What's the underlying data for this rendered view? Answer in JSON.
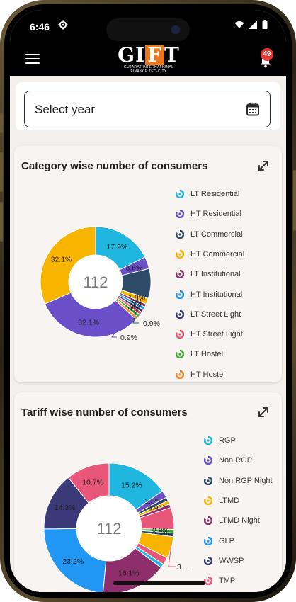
{
  "status_bar": {
    "time": "6:46"
  },
  "header": {
    "logo_main_left": "G",
    "logo_main_mid": "I",
    "logo_main_f": "F",
    "logo_main_right": "T",
    "logo_sub_1": "GUJARAT INTERNATIONAL",
    "logo_sub_2": "FINANCE TEC-CITY",
    "notification_count": "49"
  },
  "year_select": {
    "placeholder": "Select year"
  },
  "category_card": {
    "title": "Category wise number of consumers",
    "center_value": "112",
    "legend": [
      {
        "label": "LT Residential",
        "color": "#1fb6e0"
      },
      {
        "label": "HT Residential",
        "color": "#6a4fc9"
      },
      {
        "label": "LT Commercial",
        "color": "#2d4a66"
      },
      {
        "label": "HT Commercial",
        "color": "#f7b500"
      },
      {
        "label": "LT Institutional",
        "color": "#8e2f6b"
      },
      {
        "label": "HT Institutional",
        "color": "#2196f3"
      },
      {
        "label": "LT Street Light",
        "color": "#3b3a78"
      },
      {
        "label": "HT Street Light",
        "color": "#e8577a"
      },
      {
        "label": "LT Hostel",
        "color": "#3aa935"
      },
      {
        "label": "HT Hostel",
        "color": "#ef8a2a"
      }
    ]
  },
  "tariff_card": {
    "title": "Tariff wise number of consumers",
    "center_value": "112",
    "legend": [
      {
        "label": "RGP",
        "color": "#1fb6e0"
      },
      {
        "label": "Non RGP",
        "color": "#6a4fc9"
      },
      {
        "label": "Non RGP Night",
        "color": "#2d4a66"
      },
      {
        "label": "LTMD",
        "color": "#f7b500"
      },
      {
        "label": "LTMD Night",
        "color": "#8e2f6b"
      },
      {
        "label": "GLP",
        "color": "#2196f3"
      },
      {
        "label": "WWSP",
        "color": "#3b3a78"
      },
      {
        "label": "TMP",
        "color": "#e8577a"
      }
    ]
  },
  "chart_data": [
    {
      "type": "pie",
      "title": "Category wise number of consumers",
      "center_label": "112",
      "slices": [
        {
          "label": "LT Residential",
          "value": 17.9,
          "text": "17.9%",
          "color": "#1fb6e0"
        },
        {
          "label": "HT Residential",
          "value": 3.6,
          "text": "3.6%",
          "color": "#6a4fc9"
        },
        {
          "label": "LT Commercial",
          "value": 8.9,
          "text": "",
          "color": "#2d4a66"
        },
        {
          "label": "HT Commercial",
          "value": 1.8,
          "text": "1.8%",
          "color": "#f7b500"
        },
        {
          "label": "LT Institutional",
          "value": 0.9,
          "text": "",
          "color": "#8e2f6b"
        },
        {
          "label": "HT Institutional",
          "value": 0.9,
          "text": "0.9%",
          "color": "#2196f3"
        },
        {
          "label": "LT Street Light",
          "value": 0.9,
          "text": "0.9%",
          "color": "#3b3a78"
        },
        {
          "label": "HT Street Light",
          "value": 0.9,
          "text": "0.9%",
          "color": "#e8577a"
        },
        {
          "label": "LT Hostel",
          "value": 0.9,
          "text": "0.9%",
          "color": "#3aa935"
        },
        {
          "label": "HT Hostel",
          "value": 0.9,
          "text": "",
          "color": "#ef8a2a"
        },
        {
          "label": "HT Residential",
          "value": 32.1,
          "text": "32.1%",
          "color": "#6a4fc9"
        },
        {
          "label": "HT Commercial",
          "value": 32.1,
          "text": "32.1%",
          "color": "#f7b500"
        }
      ],
      "outside_labels": [
        "0.9%",
        "0.9%"
      ]
    },
    {
      "type": "pie",
      "title": "Tariff wise number of consumers",
      "center_label": "112",
      "slices": [
        {
          "label": "RGP",
          "value": 15.2,
          "text": "15.2%",
          "color": "#1fb6e0"
        },
        {
          "label": "Non RGP",
          "value": 1.8,
          "text": "1.8%",
          "color": "#6a4fc9"
        },
        {
          "label": "Non RGP Night",
          "value": 0.9,
          "text": "",
          "color": "#2d4a66"
        },
        {
          "label": "LTMD",
          "value": 0.9,
          "text": "0.9%",
          "color": "#f7b500"
        },
        {
          "label": "LTMD Night",
          "value": 0.9,
          "text": "",
          "color": "#8e2f6b"
        },
        {
          "label": "GLP",
          "value": 5.4,
          "text": "",
          "color": "#e8577a"
        },
        {
          "label": "WWSP",
          "value": 0.9,
          "text": "0.9%",
          "color": "#3aa935"
        },
        {
          "label": "TMP",
          "value": 0.9,
          "text": "0.9%",
          "color": "#2d4a66"
        },
        {
          "label": "LTMD",
          "value": 5.4,
          "text": "",
          "color": "#f7b500"
        },
        {
          "label": "TMP",
          "value": 1.8,
          "text": "",
          "color": "#e8577a"
        },
        {
          "label": "GLP",
          "value": 1.0,
          "text": "",
          "color": "#1fb6e0"
        },
        {
          "label": "LTMD Night",
          "value": 16.1,
          "text": "16.1%",
          "color": "#8e2f6b"
        },
        {
          "label": "GLP",
          "value": 23.2,
          "text": "23.2%",
          "color": "#2196f3"
        },
        {
          "label": "WWSP",
          "value": 14.3,
          "text": "14.3%",
          "color": "#3b3a78"
        },
        {
          "label": "TMP",
          "value": 10.7,
          "text": "10.7%",
          "color": "#e8577a"
        }
      ],
      "outside_labels": [
        "3...."
      ]
    }
  ]
}
